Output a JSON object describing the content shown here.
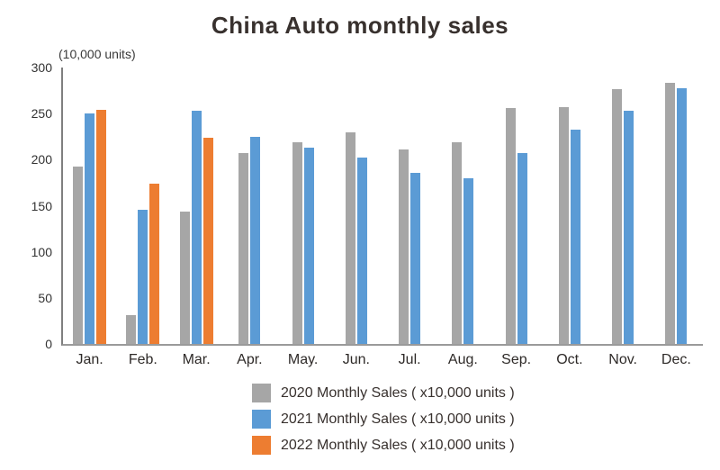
{
  "chart_data": {
    "type": "bar",
    "title": "China Auto monthly sales",
    "y_axis_unit_label": "(10,000 units)",
    "categories": [
      "Jan.",
      "Feb.",
      "Mar.",
      "Apr.",
      "May.",
      "Jun.",
      "Jul.",
      "Aug.",
      "Sep.",
      "Oct.",
      "Nov.",
      "Dec."
    ],
    "series": [
      {
        "name": "2020 Monthly Sales ( x10,000 units )",
        "color": "#a6a6a6",
        "values": [
          193,
          31,
          144,
          207,
          219,
          230,
          211,
          219,
          256,
          257,
          277,
          283
        ]
      },
      {
        "name": "2021 Monthly Sales ( x10,000 units )",
        "color": "#5b9bd5",
        "values": [
          250,
          146,
          253,
          225,
          213,
          202,
          186,
          180,
          207,
          233,
          253,
          278
        ]
      },
      {
        "name": "2022 Monthly Sales ( x10,000 units )",
        "color": "#ed7d31",
        "values": [
          254,
          174,
          224,
          null,
          null,
          null,
          null,
          null,
          null,
          null,
          null,
          null
        ]
      }
    ],
    "ylim": [
      0,
      300
    ],
    "yticks": [
      0,
      50,
      100,
      150,
      200,
      250,
      300
    ],
    "grid": false,
    "legend_position": "bottom-center",
    "axis_color": "#8a8a8a",
    "text_color": "#333333"
  }
}
